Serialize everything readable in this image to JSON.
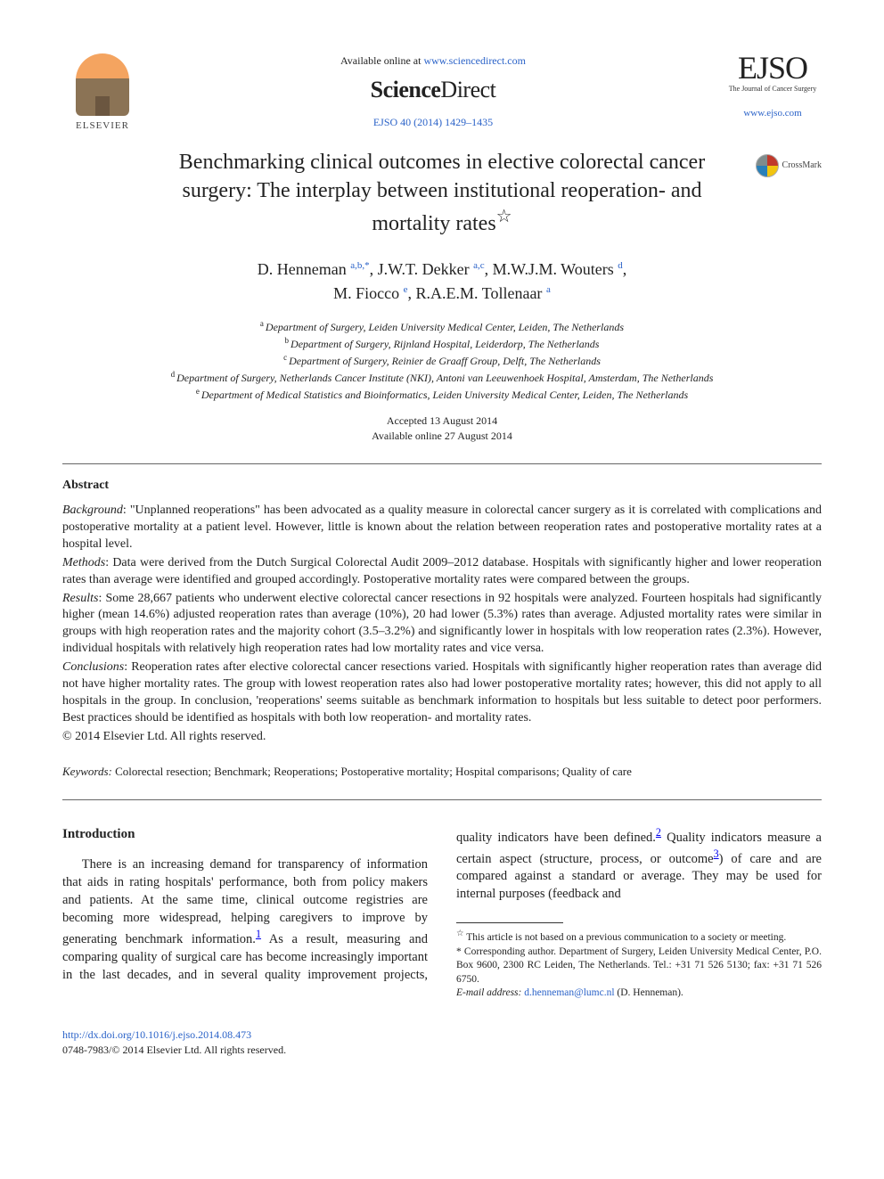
{
  "header": {
    "available_prefix": "Available online at ",
    "available_url": "www.sciencedirect.com",
    "platform_name_a": "Science",
    "platform_name_b": "Direct",
    "citation": "EJSO 40 (2014) 1429–1435",
    "elsevier_label": "ELSEVIER",
    "journal_logo": "EJSO",
    "journal_tagline": "The Journal of Cancer Surgery",
    "journal_url": "www.ejso.com"
  },
  "crossmark_label": "CrossMark",
  "title": "Benchmarking clinical outcomes in elective colorectal cancer surgery: The interplay between institutional reoperation- and mortality rates",
  "title_star": "☆",
  "authors": [
    {
      "name": "D. Henneman",
      "affil": "a,b,",
      "corr": "*"
    },
    {
      "name": "J.W.T. Dekker",
      "affil": "a,c"
    },
    {
      "name": "M.W.J.M. Wouters",
      "affil": "d"
    },
    {
      "name": "M. Fiocco",
      "affil": "e"
    },
    {
      "name": "R.A.E.M. Tollenaar",
      "affil": "a"
    }
  ],
  "affiliations": [
    {
      "key": "a",
      "text": "Department of Surgery, Leiden University Medical Center, Leiden, The Netherlands"
    },
    {
      "key": "b",
      "text": "Department of Surgery, Rijnland Hospital, Leiderdorp, The Netherlands"
    },
    {
      "key": "c",
      "text": "Department of Surgery, Reinier de Graaff Group, Delft, The Netherlands"
    },
    {
      "key": "d",
      "text": "Department of Surgery, Netherlands Cancer Institute (NKI), Antoni van Leeuwenhoek Hospital, Amsterdam, The Netherlands"
    },
    {
      "key": "e",
      "text": "Department of Medical Statistics and Bioinformatics, Leiden University Medical Center, Leiden, The Netherlands"
    }
  ],
  "dates": {
    "accepted": "Accepted 13 August 2014",
    "online": "Available online 27 August 2014"
  },
  "abstract_heading": "Abstract",
  "abstract": {
    "background_label": "Background",
    "background": ": \"Unplanned reoperations\" has been advocated as a quality measure in colorectal cancer surgery as it is correlated with complications and postoperative mortality at a patient level. However, little is known about the relation between reoperation rates and postoperative mortality rates at a hospital level.",
    "methods_label": "Methods",
    "methods": ": Data were derived from the Dutch Surgical Colorectal Audit 2009–2012 database. Hospitals with significantly higher and lower reoperation rates than average were identified and grouped accordingly. Postoperative mortality rates were compared between the groups.",
    "results_label": "Results",
    "results": ": Some 28,667 patients who underwent elective colorectal cancer resections in 92 hospitals were analyzed. Fourteen hospitals had significantly higher (mean 14.6%) adjusted reoperation rates than average (10%), 20 had lower (5.3%) rates than average. Adjusted mortality rates were similar in groups with high reoperation rates and the majority cohort (3.5–3.2%) and significantly lower in hospitals with low reoperation rates (2.3%). However, individual hospitals with relatively high reoperation rates had low mortality rates and vice versa.",
    "conclusions_label": "Conclusions",
    "conclusions": ": Reoperation rates after elective colorectal cancer resections varied. Hospitals with significantly higher reoperation rates than average did not have higher mortality rates. The group with lowest reoperation rates also had lower postoperative mortality rates; however, this did not apply to all hospitals in the group. In conclusion, 'reoperations' seems suitable as benchmark information to hospitals but less suitable to detect poor performers. Best practices should be identified as hospitals with both low reoperation- and mortality rates.",
    "copyright": "© 2014 Elsevier Ltd. All rights reserved."
  },
  "keywords_label": "Keywords:",
  "keywords": " Colorectal resection; Benchmark; Reoperations; Postoperative mortality; Hospital comparisons; Quality of care",
  "body": {
    "intro_heading": "Introduction",
    "intro_para_left": "There is an increasing demand for transparency of information that aids in rating hospitals' performance, both from",
    "intro_para_right": "policy makers and patients. At the same time, clinical outcome registries are becoming more widespread, helping caregivers to improve by generating benchmark information.",
    "intro_para_right_2": " As a result, measuring and comparing quality of surgical care has become increasingly important in the last decades, and in several quality improvement projects, quality indicators have been defined.",
    "intro_para_right_3": " Quality indicators measure a certain aspect (structure, process, or outcome",
    "intro_para_right_4": ") of care and are compared against a standard or average. They may be used for internal purposes (feedback and"
  },
  "refs": {
    "r1": "1",
    "r2": "2",
    "r3": "3"
  },
  "footnotes": {
    "star": "☆",
    "star_text": " This article is not based on a previous communication to a society or meeting.",
    "corr": "*",
    "corr_text": " Corresponding author. Department of Surgery, Leiden University Medical Center, P.O. Box 9600, 2300 RC Leiden, The Netherlands. Tel.: +31 71 526 5130; fax: +31 71 526 6750.",
    "email_label": "E-mail address: ",
    "email": "d.henneman@lumc.nl",
    "email_attrib": " (D. Henneman)."
  },
  "doi": {
    "url": "http://dx.doi.org/10.1016/j.ejso.2014.08.473",
    "issn_line": "0748-7983/© 2014 Elsevier Ltd. All rights reserved."
  }
}
